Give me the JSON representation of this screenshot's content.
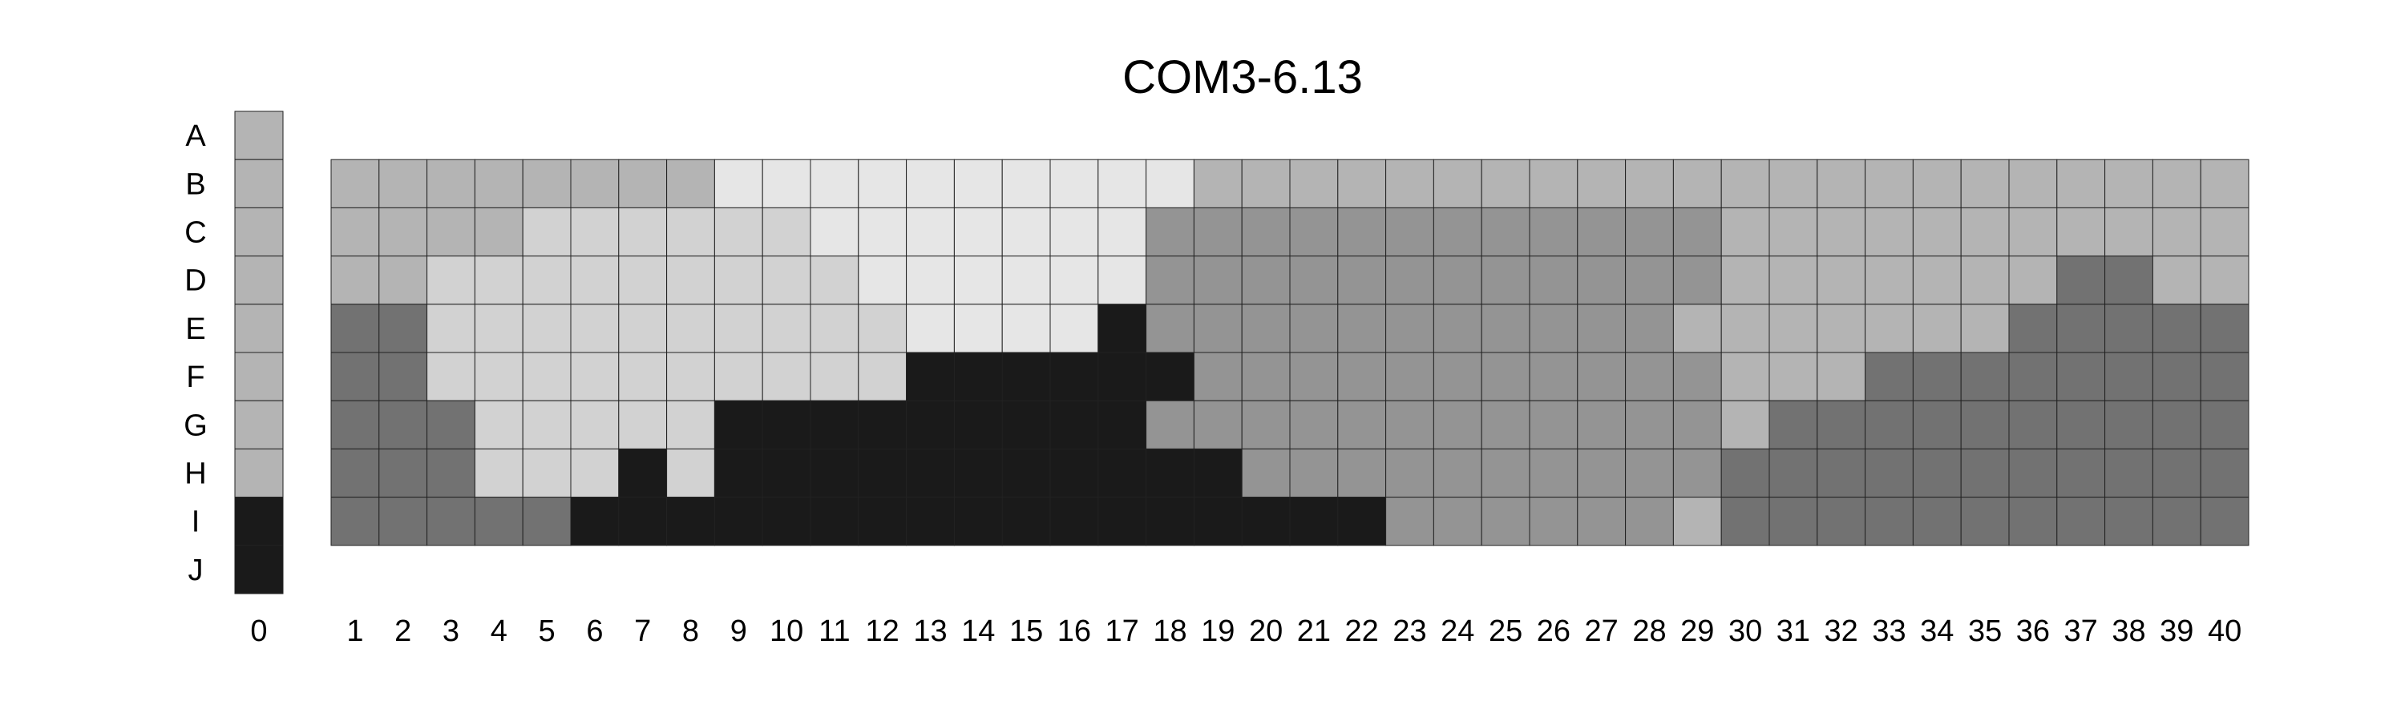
{
  "chart_data": {
    "type": "heatmap",
    "title": "COM3-6.13",
    "xlabel": "",
    "ylabel": "",
    "rows": [
      "A",
      "B",
      "C",
      "D",
      "E",
      "F",
      "G",
      "H",
      "I",
      "J"
    ],
    "columns": [
      "1",
      "2",
      "3",
      "4",
      "5",
      "6",
      "7",
      "8",
      "9",
      "10",
      "11",
      "12",
      "13",
      "14",
      "15",
      "16",
      "17",
      "18",
      "19",
      "20",
      "21",
      "22",
      "23",
      "24",
      "25",
      "26",
      "27",
      "28",
      "29",
      "30",
      "31",
      "32",
      "33",
      "34",
      "35",
      "36",
      "37",
      "38",
      "39",
      "40"
    ],
    "reference_column": {
      "label": "0",
      "values": [
        3,
        3,
        3,
        3,
        3,
        3,
        3,
        3,
        0,
        0
      ]
    },
    "grid_rows": [
      "B",
      "C",
      "D",
      "E",
      "F",
      "G",
      "H",
      "I"
    ],
    "value_colors": {
      "0": "#1a1a1a",
      "1": "#727272",
      "2": "#949494",
      "3": "#b4b4b4",
      "4": "#d2d2d2",
      "5": "#e6e6e6"
    },
    "cells": [
      [
        3,
        3,
        3,
        3,
        3,
        3,
        3,
        3,
        5,
        5,
        5,
        5,
        5,
        5,
        5,
        5,
        5,
        5,
        3,
        3,
        3,
        3,
        3,
        3,
        3,
        3,
        3,
        3,
        3,
        3,
        3,
        3,
        3,
        3,
        3,
        3,
        3,
        3,
        3,
        3
      ],
      [
        3,
        3,
        3,
        3,
        4,
        4,
        4,
        4,
        4,
        4,
        5,
        5,
        5,
        5,
        5,
        5,
        5,
        2,
        2,
        2,
        2,
        2,
        2,
        2,
        2,
        2,
        2,
        2,
        2,
        3,
        3,
        3,
        3,
        3,
        3,
        3,
        3,
        3,
        3,
        3
      ],
      [
        3,
        3,
        4,
        4,
        4,
        4,
        4,
        4,
        4,
        4,
        4,
        5,
        5,
        5,
        5,
        5,
        5,
        2,
        2,
        2,
        2,
        2,
        2,
        2,
        2,
        2,
        2,
        2,
        2,
        3,
        3,
        3,
        3,
        3,
        3,
        3,
        1,
        1,
        3,
        3
      ],
      [
        1,
        1,
        4,
        4,
        4,
        4,
        4,
        4,
        4,
        4,
        4,
        4,
        5,
        5,
        5,
        5,
        0,
        2,
        2,
        2,
        2,
        2,
        2,
        2,
        2,
        2,
        2,
        2,
        3,
        3,
        3,
        3,
        3,
        3,
        3,
        1,
        1,
        1,
        1,
        1
      ],
      [
        1,
        1,
        4,
        4,
        4,
        4,
        4,
        4,
        4,
        4,
        4,
        4,
        0,
        0,
        0,
        0,
        0,
        0,
        2,
        2,
        2,
        2,
        2,
        2,
        2,
        2,
        2,
        2,
        2,
        3,
        3,
        3,
        1,
        1,
        1,
        1,
        1,
        1,
        1,
        1
      ],
      [
        1,
        1,
        1,
        4,
        4,
        4,
        4,
        4,
        0,
        0,
        0,
        0,
        0,
        0,
        0,
        0,
        0,
        2,
        2,
        2,
        2,
        2,
        2,
        2,
        2,
        2,
        2,
        2,
        2,
        3,
        1,
        1,
        1,
        1,
        1,
        1,
        1,
        1,
        1,
        1
      ],
      [
        1,
        1,
        1,
        4,
        4,
        4,
        0,
        4,
        0,
        0,
        0,
        0,
        0,
        0,
        0,
        0,
        0,
        0,
        0,
        2,
        2,
        2,
        2,
        2,
        2,
        2,
        2,
        2,
        2,
        1,
        1,
        1,
        1,
        1,
        1,
        1,
        1,
        1,
        1,
        1
      ],
      [
        1,
        1,
        1,
        1,
        1,
        0,
        0,
        0,
        0,
        0,
        0,
        0,
        0,
        0,
        0,
        0,
        0,
        0,
        0,
        0,
        0,
        0,
        2,
        2,
        2,
        2,
        2,
        2,
        3,
        1,
        1,
        1,
        1,
        1,
        1,
        1,
        1,
        1,
        1,
        1
      ]
    ]
  }
}
